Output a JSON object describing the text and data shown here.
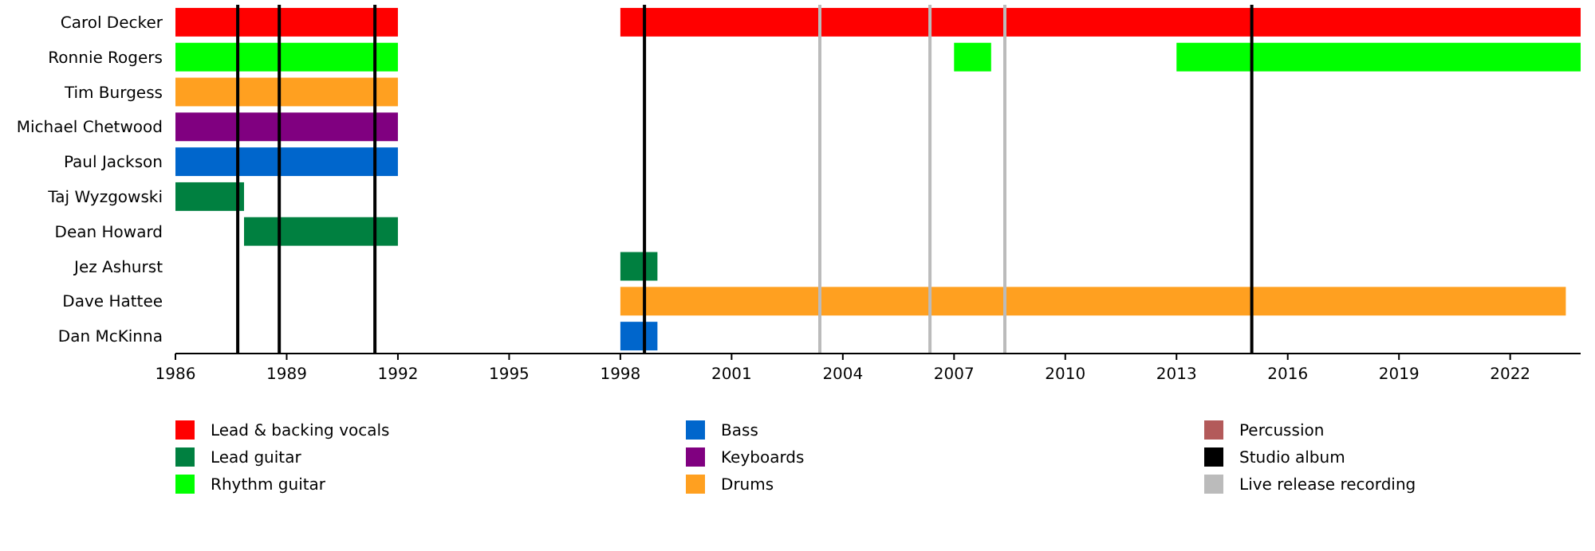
{
  "chart_data": {
    "type": "bar",
    "orientation": "horizontal",
    "categories": [
      "Carol Decker",
      "Ronnie Rogers",
      "Tim Burgess",
      "Michael Chetwood",
      "Paul Jackson",
      "Taj Wyzgowski",
      "Dean Howard",
      "Jez Ashurst",
      "Dave Hattee",
      "Dan McKinna"
    ],
    "series": [
      {
        "name": "Lead & backing vocals",
        "color": "#ff0000",
        "values": [
          6,
          null,
          null,
          null,
          null,
          null,
          null,
          null,
          null,
          null
        ],
        "base": [
          1986,
          null,
          null,
          null,
          null,
          null,
          null,
          null,
          null,
          null
        ]
      },
      {
        "color": "#ff0000",
        "values": [
          25.9,
          null,
          null,
          null,
          null,
          null,
          null,
          null,
          null,
          null
        ],
        "base": [
          1998,
          null,
          null,
          null,
          null,
          null,
          null,
          null,
          null,
          null
        ]
      },
      {
        "name": "Lead guitar",
        "color": "#008040",
        "values": [
          null,
          null,
          null,
          null,
          null,
          1.85,
          4.15,
          1,
          null,
          null
        ],
        "base": [
          null,
          null,
          null,
          null,
          null,
          1986,
          1987.85,
          1998,
          null,
          null
        ]
      },
      {
        "name": "Rhythm guitar",
        "color": "#00ff00",
        "values": [
          null,
          6,
          null,
          null,
          null,
          null,
          null,
          null,
          null,
          null
        ],
        "base": [
          null,
          1986,
          null,
          null,
          null,
          null,
          null,
          null,
          null,
          null
        ]
      },
      {
        "color": "#00ff00",
        "values": [
          null,
          1,
          null,
          null,
          null,
          null,
          null,
          null,
          null,
          null
        ],
        "base": [
          null,
          2007,
          null,
          null,
          null,
          null,
          null,
          null,
          null,
          null
        ]
      },
      {
        "color": "#00ff00",
        "values": [
          null,
          10.9,
          null,
          null,
          null,
          null,
          null,
          null,
          null,
          null
        ],
        "base": [
          null,
          2013,
          null,
          null,
          null,
          null,
          null,
          null,
          null,
          null
        ]
      },
      {
        "name": "Bass",
        "color": "#0066cc",
        "values": [
          null,
          null,
          null,
          null,
          6,
          null,
          null,
          null,
          null,
          1
        ],
        "base": [
          null,
          null,
          null,
          null,
          1986,
          null,
          null,
          null,
          null,
          1998
        ]
      },
      {
        "name": "Keyboards",
        "color": "#800080",
        "values": [
          null,
          null,
          null,
          6,
          null,
          null,
          null,
          null,
          null,
          null
        ],
        "base": [
          null,
          null,
          null,
          1986,
          null,
          null,
          null,
          null,
          null,
          null
        ]
      },
      {
        "name": "Drums",
        "color": "#ffa020",
        "values": [
          null,
          null,
          6,
          null,
          null,
          null,
          null,
          null,
          25.5,
          null
        ],
        "base": [
          null,
          null,
          1986,
          null,
          null,
          null,
          null,
          null,
          1998,
          null
        ]
      },
      {
        "name": "Percussion",
        "color": "#b35a5a",
        "values": [
          null,
          null,
          null,
          null,
          null,
          null,
          null,
          null,
          null,
          null
        ],
        "base": [
          null,
          null,
          null,
          null,
          null,
          null,
          null,
          null,
          null,
          null
        ]
      }
    ],
    "ref_lines": [
      {
        "axis": "x",
        "value": 1987.68,
        "label": "Studio album",
        "color": "#000000"
      },
      {
        "axis": "x",
        "value": 1988.8,
        "color": "#000000"
      },
      {
        "axis": "x",
        "value": 1991.38,
        "color": "#000000"
      },
      {
        "axis": "x",
        "value": 1998.65,
        "color": "#000000"
      },
      {
        "axis": "x",
        "value": 2015.03,
        "color": "#000000"
      },
      {
        "axis": "x",
        "value": 2003.38,
        "label": "Live release recording",
        "color": "#bbbbbb"
      },
      {
        "axis": "x",
        "value": 2006.35,
        "color": "#bbbbbb"
      },
      {
        "axis": "x",
        "value": 2008.37,
        "color": "#bbbbbb"
      }
    ],
    "xlim": [
      1986,
      2023.9
    ],
    "xticks": [
      1986,
      1989,
      1992,
      1995,
      1998,
      2001,
      2004,
      2007,
      2010,
      2013,
      2016,
      2019,
      2022
    ],
    "legend": "bottom"
  }
}
